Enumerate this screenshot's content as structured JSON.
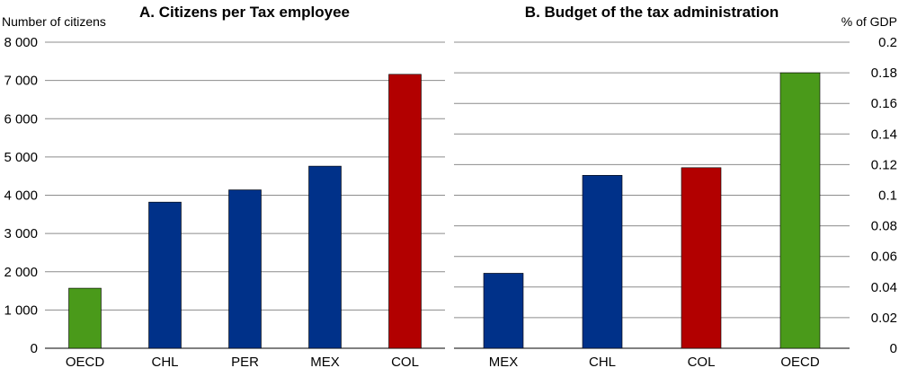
{
  "chart_data": [
    {
      "type": "bar",
      "title": "A. Citizens per Tax employee",
      "ylabel": "Number of citizens",
      "xlabel": "",
      "categories": [
        "OECD",
        "CHL",
        "PER",
        "MEX",
        "COL"
      ],
      "values": [
        1570,
        3820,
        4140,
        4760,
        7160
      ],
      "bar_colors": [
        "#4a9a1a",
        "#003189",
        "#003189",
        "#003189",
        "#b20000"
      ],
      "ylim": [
        0,
        8000
      ],
      "yticks": [
        0,
        1000,
        2000,
        3000,
        4000,
        5000,
        6000,
        7000,
        8000
      ],
      "ytick_labels": [
        "0",
        "1 000",
        "2 000",
        "3 000",
        "4 000",
        "5 000",
        "6 000",
        "7 000",
        "8 000"
      ],
      "y_axis_side": "left",
      "grid": true
    },
    {
      "type": "bar",
      "title": "B. Budget of the tax administration",
      "ylabel": "% of GDP",
      "xlabel": "",
      "categories": [
        "MEX",
        "CHL",
        "COL",
        "OECD"
      ],
      "values": [
        0.049,
        0.113,
        0.118,
        0.18
      ],
      "bar_colors": [
        "#003189",
        "#003189",
        "#b20000",
        "#4a9a1a"
      ],
      "ylim": [
        0,
        0.2
      ],
      "yticks": [
        0,
        0.02,
        0.04,
        0.06,
        0.08,
        0.1,
        0.12,
        0.14,
        0.16,
        0.18,
        0.2
      ],
      "ytick_labels": [
        "0",
        "0.02",
        "0.04",
        "0.06",
        "0.08",
        "0.1",
        "0.12",
        "0.14",
        "0.16",
        "0.18",
        "0.2"
      ],
      "y_axis_side": "right",
      "grid": true
    }
  ]
}
